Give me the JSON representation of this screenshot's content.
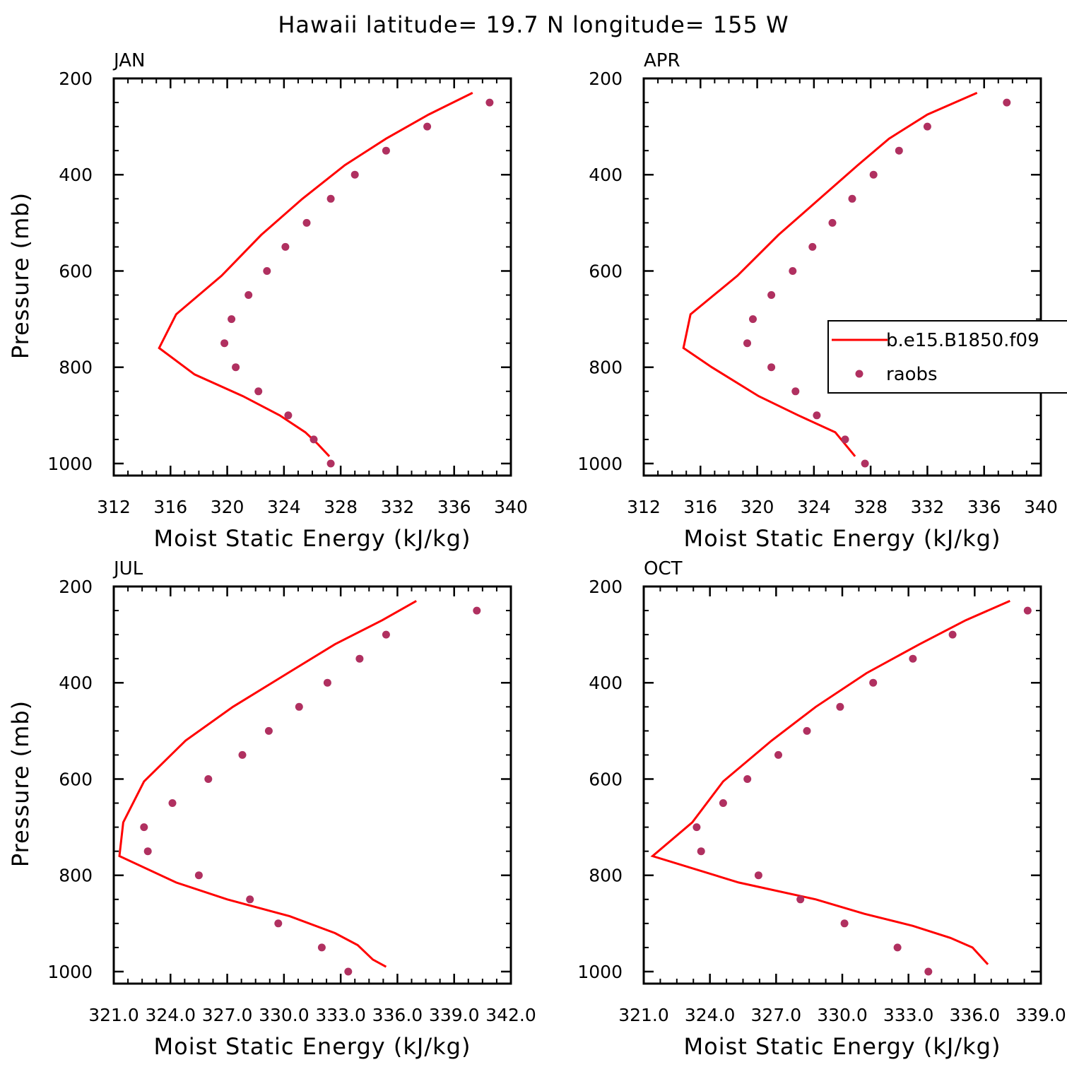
{
  "title": "Hawaii  latitude= 19.7 N longitude= 155 W",
  "legend": {
    "items": [
      {
        "label": "b.e15.B1850.f09",
        "kind": "line",
        "color": "#ff0000"
      },
      {
        "label": "raobs",
        "kind": "marker",
        "color": "#b03060"
      }
    ]
  },
  "chart_data": [
    {
      "type": "line",
      "title": "JAN",
      "xlabel": "Moist Static Energy (kJ/kg)",
      "ylabel": "Pressure (mb)",
      "xlim": [
        312,
        340
      ],
      "ylim": [
        1000,
        200
      ],
      "y_reversed": true,
      "x_ticks": [
        "312",
        "316",
        "320",
        "324",
        "328",
        "332",
        "336",
        "340"
      ],
      "y_ticks": [
        "200",
        "400",
        "600",
        "800",
        "1000"
      ],
      "series": [
        {
          "name": "b.e15.B1850.f09",
          "kind": "line",
          "color": "#ff0000",
          "points": [
            [
              337.3,
              230
            ],
            [
              334.2,
              275
            ],
            [
              331.2,
              325
            ],
            [
              328.3,
              380
            ],
            [
              325.3,
              450
            ],
            [
              322.4,
              525
            ],
            [
              319.6,
              610
            ],
            [
              316.4,
              690
            ],
            [
              315.2,
              760
            ],
            [
              317.7,
              815
            ],
            [
              321.1,
              860
            ],
            [
              323.7,
              900
            ],
            [
              325.5,
              935
            ],
            [
              326.4,
              960
            ],
            [
              327.2,
              985
            ]
          ]
        },
        {
          "name": "raobs",
          "kind": "scatter",
          "color": "#b03060",
          "points": [
            [
              338.5,
              250
            ],
            [
              334.1,
              300
            ],
            [
              331.2,
              350
            ],
            [
              329.0,
              400
            ],
            [
              327.3,
              450
            ],
            [
              325.6,
              500
            ],
            [
              324.1,
              550
            ],
            [
              322.8,
              600
            ],
            [
              321.5,
              650
            ],
            [
              320.3,
              700
            ],
            [
              319.8,
              750
            ],
            [
              320.6,
              800
            ],
            [
              322.2,
              850
            ],
            [
              324.3,
              900
            ],
            [
              326.1,
              950
            ],
            [
              327.3,
              1000
            ]
          ]
        }
      ]
    },
    {
      "type": "line",
      "title": "APR",
      "xlabel": "Moist Static Energy (kJ/kg)",
      "ylabel": "",
      "xlim": [
        312,
        340
      ],
      "ylim": [
        1000,
        200
      ],
      "y_reversed": true,
      "x_ticks": [
        "312",
        "316",
        "320",
        "324",
        "328",
        "332",
        "336",
        "340"
      ],
      "y_ticks": [
        "200",
        "400",
        "600",
        "800",
        "1000"
      ],
      "series": [
        {
          "name": "b.e15.B1850.f09",
          "kind": "line",
          "color": "#ff0000",
          "points": [
            [
              335.5,
              230
            ],
            [
              332.0,
              275
            ],
            [
              329.3,
              325
            ],
            [
              327.1,
              380
            ],
            [
              324.4,
              450
            ],
            [
              321.5,
              525
            ],
            [
              318.6,
              610
            ],
            [
              315.3,
              690
            ],
            [
              314.8,
              760
            ],
            [
              316.8,
              800
            ],
            [
              320.1,
              860
            ],
            [
              322.9,
              900
            ],
            [
              325.5,
              935
            ],
            [
              326.2,
              960
            ],
            [
              326.9,
              985
            ]
          ]
        },
        {
          "name": "raobs",
          "kind": "scatter",
          "color": "#b03060",
          "points": [
            [
              337.6,
              250
            ],
            [
              332.0,
              300
            ],
            [
              330.0,
              350
            ],
            [
              328.2,
              400
            ],
            [
              326.7,
              450
            ],
            [
              325.3,
              500
            ],
            [
              323.9,
              550
            ],
            [
              322.5,
              600
            ],
            [
              321.0,
              650
            ],
            [
              319.7,
              700
            ],
            [
              319.3,
              750
            ],
            [
              321.0,
              800
            ],
            [
              322.7,
              850
            ],
            [
              324.2,
              900
            ],
            [
              326.2,
              950
            ],
            [
              327.6,
              1000
            ]
          ]
        }
      ]
    },
    {
      "type": "line",
      "title": "JUL",
      "xlabel": "Moist Static Energy (kJ/kg)",
      "ylabel": "Pressure (mb)",
      "xlim": [
        321.0,
        342.0
      ],
      "ylim": [
        1000,
        200
      ],
      "y_reversed": true,
      "x_ticks": [
        "321.0",
        "324.0",
        "327.0",
        "330.0",
        "333.0",
        "336.0",
        "339.0",
        "342.0"
      ],
      "y_ticks": [
        "200",
        "400",
        "600",
        "800",
        "1000"
      ],
      "series": [
        {
          "name": "b.e15.B1850.f09",
          "kind": "line",
          "color": "#ff0000",
          "points": [
            [
              337.0,
              230
            ],
            [
              335.2,
              270
            ],
            [
              332.7,
              320
            ],
            [
              330.2,
              380
            ],
            [
              327.3,
              450
            ],
            [
              324.8,
              520
            ],
            [
              322.6,
              605
            ],
            [
              321.5,
              690
            ],
            [
              321.3,
              760
            ],
            [
              324.3,
              815
            ],
            [
              327.0,
              850
            ],
            [
              330.3,
              885
            ],
            [
              332.7,
              920
            ],
            [
              333.9,
              945
            ],
            [
              334.7,
              975
            ],
            [
              335.4,
              990
            ]
          ]
        },
        {
          "name": "raobs",
          "kind": "scatter",
          "color": "#b03060",
          "points": [
            [
              340.2,
              250
            ],
            [
              335.4,
              300
            ],
            [
              334.0,
              350
            ],
            [
              332.3,
              400
            ],
            [
              330.8,
              450
            ],
            [
              329.2,
              500
            ],
            [
              327.8,
              550
            ],
            [
              326.0,
              600
            ],
            [
              324.1,
              650
            ],
            [
              322.6,
              700
            ],
            [
              322.8,
              750
            ],
            [
              325.5,
              800
            ],
            [
              328.2,
              850
            ],
            [
              329.7,
              900
            ],
            [
              332.0,
              950
            ],
            [
              333.4,
              1000
            ]
          ]
        }
      ]
    },
    {
      "type": "line",
      "title": "OCT",
      "xlabel": "Moist Static Energy (kJ/kg)",
      "ylabel": "",
      "xlim": [
        321.0,
        339.0
      ],
      "ylim": [
        1000,
        200
      ],
      "y_reversed": true,
      "x_ticks": [
        "321.0",
        "324.0",
        "327.0",
        "330.0",
        "333.0",
        "336.0",
        "339.0"
      ],
      "y_ticks": [
        "200",
        "400",
        "600",
        "800",
        "1000"
      ],
      "series": [
        {
          "name": "b.e15.B1850.f09",
          "kind": "line",
          "color": "#ff0000",
          "points": [
            [
              337.6,
              230
            ],
            [
              335.6,
              270
            ],
            [
              333.5,
              320
            ],
            [
              331.1,
              380
            ],
            [
              328.8,
              450
            ],
            [
              326.8,
              520
            ],
            [
              324.6,
              605
            ],
            [
              323.2,
              690
            ],
            [
              321.4,
              760
            ],
            [
              325.3,
              815
            ],
            [
              328.8,
              850
            ],
            [
              331.0,
              880
            ],
            [
              333.2,
              905
            ],
            [
              334.9,
              930
            ],
            [
              335.9,
              950
            ],
            [
              336.6,
              985
            ]
          ]
        },
        {
          "name": "raobs",
          "kind": "scatter",
          "color": "#b03060",
          "points": [
            [
              338.4,
              250
            ],
            [
              335.0,
              300
            ],
            [
              333.2,
              350
            ],
            [
              331.4,
              400
            ],
            [
              329.9,
              450
            ],
            [
              328.4,
              500
            ],
            [
              327.1,
              550
            ],
            [
              325.7,
              600
            ],
            [
              324.6,
              650
            ],
            [
              323.4,
              700
            ],
            [
              323.6,
              750
            ],
            [
              326.2,
              800
            ],
            [
              328.1,
              850
            ],
            [
              330.1,
              900
            ],
            [
              332.5,
              950
            ],
            [
              333.9,
              1000
            ]
          ]
        }
      ]
    }
  ]
}
